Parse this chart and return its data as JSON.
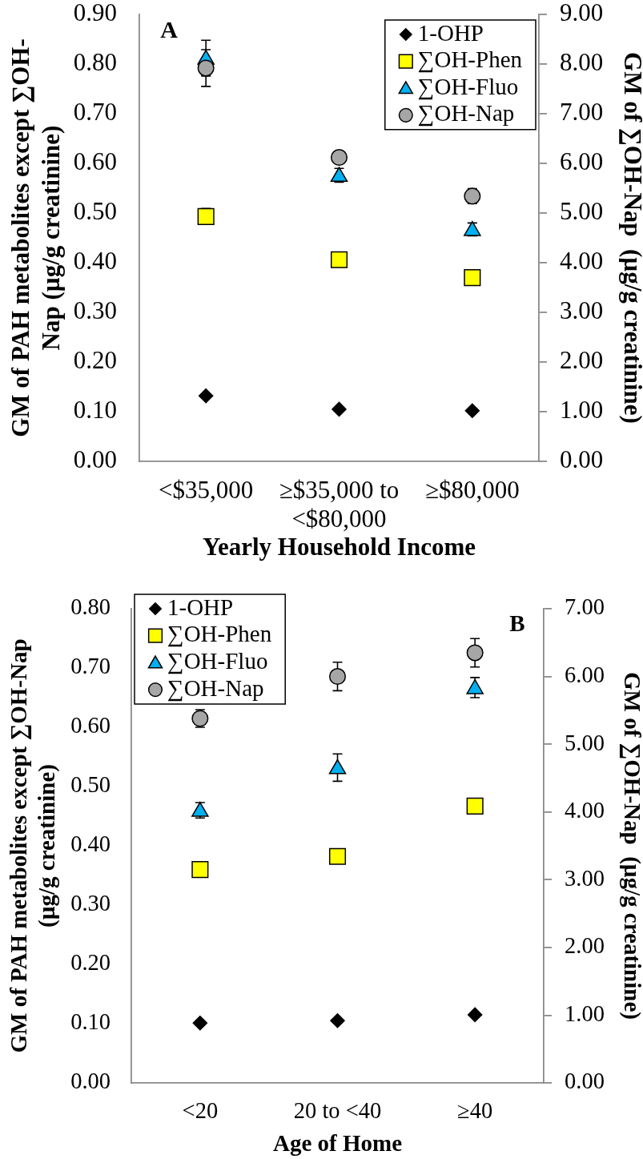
{
  "chart_data": [
    {
      "type": "scatter",
      "categories": [
        "<$35,000",
        "≥$35,000 to <$80,000",
        "≥$80,000"
      ],
      "xlabel": "Yearly Household Income",
      "ylabel": "GM of PAH metabolites except ∑OH-Nap (µg/g creatinine)",
      "y2label": "GM of ∑OH-Nap  (µg/g creatinine)",
      "ylim": [
        0,
        0.9
      ],
      "yticks": [
        {
          "value": 0,
          "label": "0.00"
        },
        {
          "value": 0.1,
          "label": "0.10"
        },
        {
          "value": 0.2,
          "label": "0.20"
        },
        {
          "value": 0.3,
          "label": "0.30"
        },
        {
          "value": 0.4,
          "label": "0.40"
        },
        {
          "value": 0.5,
          "label": "0.50"
        },
        {
          "value": 0.6,
          "label": "0.60"
        },
        {
          "value": 0.7,
          "label": "0.70"
        },
        {
          "value": 0.8,
          "label": "0.80"
        },
        {
          "value": 0.9,
          "label": "0.90"
        }
      ],
      "y2lim": [
        0,
        9
      ],
      "y2ticks": [
        {
          "value": 0,
          "label": "0.00"
        },
        {
          "value": 1,
          "label": "1.00"
        },
        {
          "value": 2,
          "label": "2.00"
        },
        {
          "value": 3,
          "label": "3.00"
        },
        {
          "value": 4,
          "label": "4.00"
        },
        {
          "value": 5,
          "label": "5.00"
        },
        {
          "value": 6,
          "label": "6.00"
        },
        {
          "value": 7,
          "label": "7.00"
        },
        {
          "value": 8,
          "label": "8.00"
        },
        {
          "value": 9,
          "label": "9.00"
        }
      ],
      "legend": "top right",
      "annotations": [
        "A"
      ],
      "series": [
        {
          "name": "1-OHP",
          "color": "#000000",
          "marker": "diamond",
          "values": [
            0.132,
            0.105,
            0.102
          ]
        },
        {
          "name": "∑OH-Phen",
          "color": "#ffff00",
          "marker": "square",
          "values": [
            0.493,
            0.406,
            0.37
          ],
          "errors": [
            0.016,
            null,
            null
          ]
        },
        {
          "name": "∑OH-Fluo",
          "color": "#00b0f0",
          "marker": "triangle",
          "values": [
            0.812,
            0.576,
            0.467
          ],
          "errors": [
            0.036,
            0.014,
            0.013
          ]
        },
        {
          "name": "∑OH-Nap",
          "color": "#a6a6a6",
          "marker": "circle",
          "axis": "y2",
          "values": [
            7.92,
            6.12,
            5.34
          ],
          "errors": [
            0.37,
            null,
            0.15
          ]
        }
      ]
    },
    {
      "type": "scatter",
      "categories": [
        "<20",
        "20 to <40",
        "≥40"
      ],
      "xlabel": "Age of Home",
      "ylabel": "GM of PAH metabolites except ∑OH-Nap (µg/g creatinine)",
      "y2label": "GM of ∑OH-Nap  (µg/g creatinine)",
      "ylim": [
        0,
        0.8
      ],
      "yticks": [
        {
          "value": 0,
          "label": "0.00"
        },
        {
          "value": 0.1,
          "label": "0.10"
        },
        {
          "value": 0.2,
          "label": "0.20"
        },
        {
          "value": 0.3,
          "label": "0.30"
        },
        {
          "value": 0.4,
          "label": "0.40"
        },
        {
          "value": 0.5,
          "label": "0.50"
        },
        {
          "value": 0.6,
          "label": "0.60"
        },
        {
          "value": 0.7,
          "label": "0.70"
        },
        {
          "value": 0.8,
          "label": "0.80"
        }
      ],
      "y2lim": [
        0,
        7
      ],
      "y2ticks": [
        {
          "value": 0,
          "label": "0.00"
        },
        {
          "value": 1,
          "label": "1.00"
        },
        {
          "value": 2,
          "label": "2.00"
        },
        {
          "value": 3,
          "label": "3.00"
        },
        {
          "value": 4,
          "label": "4.00"
        },
        {
          "value": 5,
          "label": "5.00"
        },
        {
          "value": 6,
          "label": "6.00"
        },
        {
          "value": 7,
          "label": "7.00"
        }
      ],
      "legend": "top left",
      "annotations": [
        "B"
      ],
      "series": [
        {
          "name": "1-OHP",
          "color": "#000000",
          "marker": "diamond",
          "values": [
            0.101,
            0.105,
            0.115
          ]
        },
        {
          "name": "∑OH-Phen",
          "color": "#ffff00",
          "marker": "square",
          "values": [
            0.36,
            0.382,
            0.467
          ]
        },
        {
          "name": "∑OH-Fluo",
          "color": "#00b0f0",
          "marker": "triangle",
          "values": [
            0.46,
            0.532,
            0.667
          ],
          "errors": [
            0.013,
            0.023,
            0.017
          ]
        },
        {
          "name": "∑OH-Nap",
          "color": "#a6a6a6",
          "marker": "circle",
          "axis": "y2",
          "values": [
            5.38,
            6.0,
            6.35
          ],
          "errors": [
            0.13,
            0.21,
            0.21
          ]
        }
      ]
    }
  ]
}
